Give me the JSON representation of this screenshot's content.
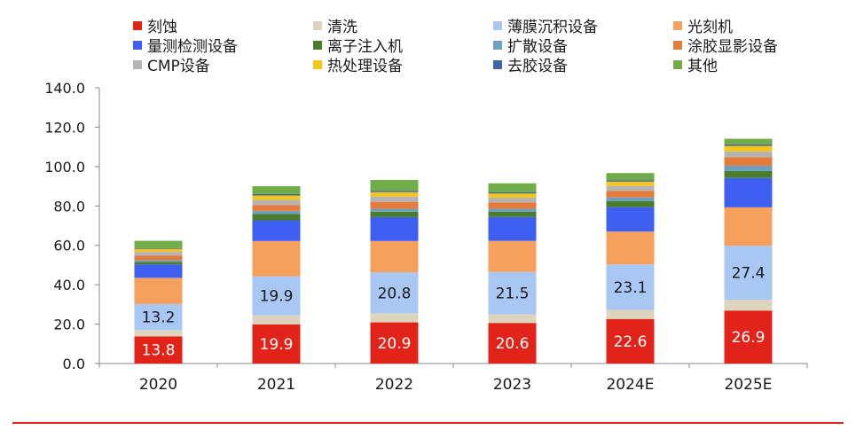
{
  "chart_data": {
    "type": "bar",
    "stacked": true,
    "categories": [
      "2020",
      "2021",
      "2022",
      "2023",
      "2024E",
      "2025E"
    ],
    "ylim": [
      0,
      140
    ],
    "yticks": [
      "0.0",
      "20.0",
      "40.0",
      "60.0",
      "80.0",
      "100.0",
      "120.0",
      "140.0"
    ],
    "grid": false,
    "legend_position": "top",
    "series": [
      {
        "name": "刻蚀",
        "color": "#e2231a",
        "values": [
          13.8,
          19.9,
          20.9,
          20.6,
          22.6,
          26.9
        ],
        "labels": [
          "13.8",
          "19.9",
          "20.9",
          "20.6",
          "22.6",
          "26.9"
        ]
      },
      {
        "name": "清洗",
        "color": "#ddd4bd",
        "values": [
          3.2,
          4.5,
          4.6,
          4.4,
          4.6,
          5.5
        ]
      },
      {
        "name": "薄膜沉积设备",
        "color": "#a8c7f2",
        "values": [
          13.2,
          19.9,
          20.8,
          21.5,
          23.1,
          27.4
        ],
        "labels": [
          "13.2",
          "19.9",
          "20.8",
          "21.5",
          "23.1",
          "27.4"
        ]
      },
      {
        "name": "光刻机",
        "color": "#f6a05e",
        "values": [
          13.3,
          17.9,
          15.9,
          15.8,
          16.7,
          19.5
        ]
      },
      {
        "name": "量测检测设备",
        "color": "#3e5ff2",
        "values": [
          6.8,
          10.5,
          12.1,
          12.1,
          12.4,
          14.9
        ]
      },
      {
        "name": "离子注入机",
        "color": "#4b7d2b",
        "values": [
          1.3,
          3.3,
          2.8,
          2.6,
          3.0,
          3.5
        ]
      },
      {
        "name": "扩散设备",
        "color": "#6aa0c4",
        "values": [
          0.9,
          1.5,
          1.5,
          1.6,
          1.9,
          2.7
        ]
      },
      {
        "name": "涂胶显影设备",
        "color": "#e67a3a",
        "values": [
          2.2,
          3.0,
          3.5,
          3.2,
          3.4,
          4.4
        ]
      },
      {
        "name": "CMP设备",
        "color": "#b4b4b4",
        "values": [
          2.0,
          2.6,
          2.7,
          2.4,
          2.5,
          2.9
        ]
      },
      {
        "name": "热处理设备",
        "color": "#f5c518",
        "values": [
          1.5,
          2.2,
          2.2,
          2.1,
          2.2,
          2.8
        ]
      },
      {
        "name": "去胶设备",
        "color": "#3f64a8",
        "values": [
          0.4,
          0.7,
          0.7,
          0.6,
          0.7,
          0.8
        ]
      },
      {
        "name": "其他",
        "color": "#70ad47",
        "values": [
          3.7,
          4.0,
          5.5,
          4.6,
          3.6,
          2.8
        ]
      }
    ]
  },
  "colors": {
    "axis": "#888888",
    "bottom_rule": "#e2231a",
    "label_dark": "#1a1a1a",
    "label_light": "#ffffff"
  }
}
